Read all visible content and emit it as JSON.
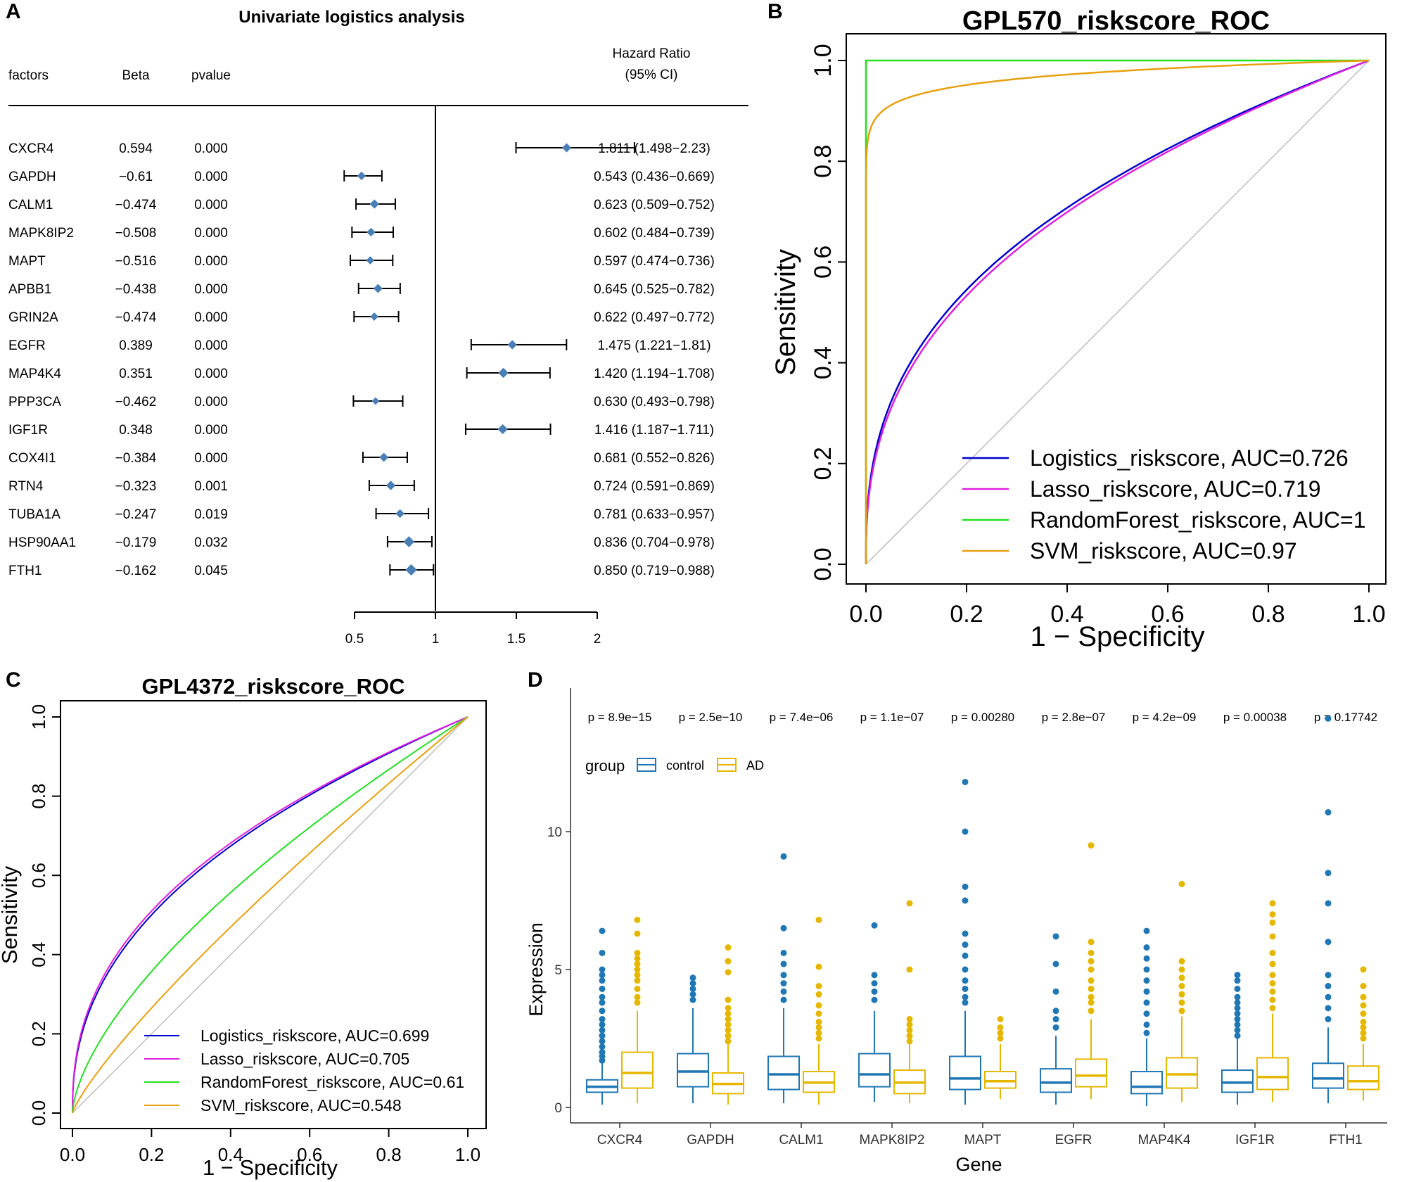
{
  "panel_labels": [
    "A",
    "B",
    "C",
    "D"
  ],
  "chart_data": [
    {
      "type": "forest",
      "panel": "A",
      "title": "Univariate logistics analysis",
      "headers": {
        "factors": "factors",
        "beta": "Beta",
        "pvalue": "pvalue",
        "hr_line1": "Hazard Ratio",
        "hr_line2": "(95% CI)"
      },
      "rows": [
        {
          "factor": "CXCR4",
          "beta": "0.594",
          "pvalue": "0.000",
          "hr": 1.811,
          "lo": 1.498,
          "hi": 2.23,
          "hr_text": "1.811 (1.498−2.23)"
        },
        {
          "factor": "GAPDH",
          "beta": "−0.61",
          "pvalue": "0.000",
          "hr": 0.543,
          "lo": 0.436,
          "hi": 0.669,
          "hr_text": "0.543 (0.436−0.669)"
        },
        {
          "factor": "CALM1",
          "beta": "−0.474",
          "pvalue": "0.000",
          "hr": 0.623,
          "lo": 0.509,
          "hi": 0.752,
          "hr_text": "0.623 (0.509−0.752)"
        },
        {
          "factor": "MAPK8IP2",
          "beta": "−0.508",
          "pvalue": "0.000",
          "hr": 0.602,
          "lo": 0.484,
          "hi": 0.739,
          "hr_text": "0.602 (0.484−0.739)"
        },
        {
          "factor": "MAPT",
          "beta": "−0.516",
          "pvalue": "0.000",
          "hr": 0.597,
          "lo": 0.474,
          "hi": 0.736,
          "hr_text": "0.597 (0.474−0.736)"
        },
        {
          "factor": "APBB1",
          "beta": "−0.438",
          "pvalue": "0.000",
          "hr": 0.645,
          "lo": 0.525,
          "hi": 0.782,
          "hr_text": "0.645 (0.525−0.782)"
        },
        {
          "factor": "GRIN2A",
          "beta": "−0.474",
          "pvalue": "0.000",
          "hr": 0.622,
          "lo": 0.497,
          "hi": 0.772,
          "hr_text": "0.622 (0.497−0.772)"
        },
        {
          "factor": "EGFR",
          "beta": "0.389",
          "pvalue": "0.000",
          "hr": 1.475,
          "lo": 1.221,
          "hi": 1.81,
          "hr_text": "1.475 (1.221−1.81)"
        },
        {
          "factor": "MAP4K4",
          "beta": "0.351",
          "pvalue": "0.000",
          "hr": 1.42,
          "lo": 1.194,
          "hi": 1.708,
          "hr_text": "1.420 (1.194−1.708)"
        },
        {
          "factor": "PPP3CA",
          "beta": "−0.462",
          "pvalue": "0.000",
          "hr": 0.63,
          "lo": 0.493,
          "hi": 0.798,
          "hr_text": "0.630 (0.493−0.798)"
        },
        {
          "factor": "IGF1R",
          "beta": "0.348",
          "pvalue": "0.000",
          "hr": 1.416,
          "lo": 1.187,
          "hi": 1.711,
          "hr_text": "1.416 (1.187−1.711)"
        },
        {
          "factor": "COX4I1",
          "beta": "−0.384",
          "pvalue": "0.000",
          "hr": 0.681,
          "lo": 0.552,
          "hi": 0.826,
          "hr_text": "0.681 (0.552−0.826)"
        },
        {
          "factor": "RTN4",
          "beta": "−0.323",
          "pvalue": "0.001",
          "hr": 0.724,
          "lo": 0.591,
          "hi": 0.869,
          "hr_text": "0.724 (0.591−0.869)"
        },
        {
          "factor": "TUBA1A",
          "beta": "−0.247",
          "pvalue": "0.019",
          "hr": 0.781,
          "lo": 0.633,
          "hi": 0.957,
          "hr_text": "0.781 (0.633−0.957)"
        },
        {
          "factor": "HSP90AA1",
          "beta": "−0.179",
          "pvalue": "0.032",
          "hr": 0.836,
          "lo": 0.704,
          "hi": 0.978,
          "hr_text": "0.836 (0.704−0.978)"
        },
        {
          "factor": "FTH1",
          "beta": "−0.162",
          "pvalue": "0.045",
          "hr": 0.85,
          "lo": 0.719,
          "hi": 0.988,
          "hr_text": "0.850 (0.719−0.988)"
        }
      ],
      "xticks": [
        0.5,
        1,
        1.5,
        2
      ],
      "xtick_labels": [
        "0.5",
        "1",
        "1.5",
        "2"
      ],
      "xlim": [
        0.5,
        2
      ],
      "marker_color": "#4a7fb5"
    },
    {
      "type": "line",
      "panel": "B",
      "title": "GPL570_riskscore_ROC",
      "xlabel": "1 − Specificity",
      "ylabel": "Sensitivity",
      "xlim": [
        0,
        1
      ],
      "ylim": [
        0,
        1
      ],
      "ticks": [
        0,
        0.2,
        0.4,
        0.6,
        0.8,
        1
      ],
      "tick_labels": [
        "0.0",
        "0.2",
        "0.4",
        "0.6",
        "0.8",
        "1.0"
      ],
      "diagonal_color": "#bebebe",
      "legend_position": "bottom-right",
      "series": [
        {
          "name": "Logistics_riskscore, AUC=0.726",
          "auc": 0.726,
          "color": "#0000cd"
        },
        {
          "name": "Lasso_riskscore, AUC=0.719",
          "auc": 0.719,
          "color": "#e020e0"
        },
        {
          "name": "RandomForest_riskscore, AUC=1",
          "auc": 1,
          "color": "#22e022"
        },
        {
          "name": "SVM_riskscore, AUC=0.97",
          "auc": 0.97,
          "color": "#e8a010"
        }
      ]
    },
    {
      "type": "line",
      "panel": "C",
      "title": "GPL4372_riskscore_ROC",
      "xlabel": "1 − Specificity",
      "ylabel": "Sensitivity",
      "xlim": [
        0,
        1
      ],
      "ylim": [
        0,
        1
      ],
      "ticks": [
        0,
        0.2,
        0.4,
        0.6,
        0.8,
        1
      ],
      "tick_labels": [
        "0.0",
        "0.2",
        "0.4",
        "0.6",
        "0.8",
        "1.0"
      ],
      "diagonal_color": "#bebebe",
      "legend_position": "bottom-right",
      "series": [
        {
          "name": "Logistics_riskscore, AUC=0.699",
          "auc": 0.699,
          "color": "#0000cd"
        },
        {
          "name": "Lasso_riskscore, AUC=0.705",
          "auc": 0.705,
          "color": "#e020e0"
        },
        {
          "name": "RandomForest_riskscore, AUC=0.61",
          "auc": 0.61,
          "color": "#22e022"
        },
        {
          "name": "SVM_riskscore, AUC=0.548",
          "auc": 0.548,
          "color": "#e8a010"
        }
      ]
    },
    {
      "type": "box",
      "panel": "D",
      "xlabel": "Gene",
      "ylabel": "Expression",
      "ylim": [
        -0.5,
        14.3
      ],
      "yticks": [
        0,
        5,
        10
      ],
      "ytick_labels": [
        "0",
        "5",
        "10"
      ],
      "legend_title": "group",
      "groups": [
        {
          "name": "control",
          "color": "#1f77b4"
        },
        {
          "name": "AD",
          "color": "#e6b700"
        }
      ],
      "genes": [
        {
          "gene": "CXCR4",
          "pvalue": "p = 8.9e−15",
          "control": {
            "q1": 0.55,
            "med": 0.75,
            "q3": 1.0,
            "wlo": 0.1,
            "whi": 1.6,
            "outliers": [
              1.7,
              1.85,
              2.0,
              2.2,
              2.4,
              2.6,
              2.8,
              3.0,
              3.2,
              3.5,
              3.8,
              4.0,
              4.3,
              4.6,
              4.8,
              5.0,
              5.6,
              6.4
            ]
          },
          "AD": {
            "q1": 0.7,
            "med": 1.25,
            "q3": 2.0,
            "wlo": 0.15,
            "whi": 3.5,
            "outliers": [
              3.8,
              4.0,
              4.3,
              4.6,
              4.8,
              5.0,
              5.2,
              5.4,
              5.6,
              6.3,
              6.8
            ]
          }
        },
        {
          "gene": "GAPDH",
          "pvalue": "p = 2.5e−10",
          "control": {
            "q1": 0.75,
            "med": 1.3,
            "q3": 1.95,
            "wlo": 0.15,
            "whi": 3.6,
            "outliers": [
              3.9,
              4.1,
              4.3,
              4.5,
              4.7
            ]
          },
          "AD": {
            "q1": 0.5,
            "med": 0.85,
            "q3": 1.25,
            "wlo": 0.1,
            "whi": 2.3,
            "outliers": [
              2.4,
              2.6,
              2.8,
              3.0,
              3.2,
              3.4,
              3.6,
              3.9,
              4.9,
              5.3,
              5.8
            ]
          }
        },
        {
          "gene": "CALM1",
          "pvalue": "p = 7.4e−06",
          "control": {
            "q1": 0.65,
            "med": 1.2,
            "q3": 1.85,
            "wlo": 0.15,
            "whi": 3.6,
            "outliers": [
              3.9,
              4.2,
              4.5,
              4.8,
              5.2,
              5.6,
              6.5,
              9.1
            ]
          },
          "AD": {
            "q1": 0.55,
            "med": 0.9,
            "q3": 1.3,
            "wlo": 0.1,
            "whi": 2.3,
            "outliers": [
              2.5,
              2.7,
              2.9,
              3.1,
              3.4,
              3.7,
              4.1,
              4.4,
              5.1,
              6.8
            ]
          }
        },
        {
          "gene": "MAPK8IP2",
          "pvalue": "p = 1.1e−07",
          "control": {
            "q1": 0.75,
            "med": 1.2,
            "q3": 1.95,
            "wlo": 0.2,
            "whi": 3.5,
            "outliers": [
              3.9,
              4.2,
              4.5,
              4.8,
              6.6
            ]
          },
          "AD": {
            "q1": 0.5,
            "med": 0.9,
            "q3": 1.35,
            "wlo": 0.15,
            "whi": 2.3,
            "outliers": [
              2.4,
              2.6,
              2.8,
              3.0,
              3.2,
              5.0,
              7.4
            ]
          }
        },
        {
          "gene": "MAPT",
          "pvalue": "p = 0.00280",
          "control": {
            "q1": 0.65,
            "med": 1.05,
            "q3": 1.85,
            "wlo": 0.1,
            "whi": 3.5,
            "outliers": [
              3.8,
              4.0,
              4.3,
              4.6,
              5.0,
              5.5,
              5.9,
              6.3,
              7.5,
              8.0,
              10.0,
              11.8
            ]
          },
          "AD": {
            "q1": 0.7,
            "med": 0.95,
            "q3": 1.3,
            "wlo": 0.3,
            "whi": 2.3,
            "outliers": [
              2.5,
              2.7,
              2.9,
              3.2
            ]
          }
        },
        {
          "gene": "EGFR",
          "pvalue": "p = 2.8e−07",
          "control": {
            "q1": 0.55,
            "med": 0.9,
            "q3": 1.4,
            "wlo": 0.1,
            "whi": 2.6,
            "outliers": [
              2.9,
              3.2,
              3.5,
              4.2,
              5.2,
              6.2
            ]
          },
          "AD": {
            "q1": 0.75,
            "med": 1.15,
            "q3": 1.75,
            "wlo": 0.3,
            "whi": 3.2,
            "outliers": [
              3.5,
              3.8,
              4.0,
              4.3,
              4.6,
              5.0,
              5.3,
              5.6,
              6.0,
              9.5
            ]
          }
        },
        {
          "gene": "MAP4K4",
          "pvalue": "p = 4.2e−09",
          "control": {
            "q1": 0.5,
            "med": 0.75,
            "q3": 1.3,
            "wlo": 0.05,
            "whi": 2.5,
            "outliers": [
              2.7,
              3.0,
              3.4,
              3.8,
              4.2,
              4.6,
              5.0,
              5.4,
              5.8,
              6.4
            ]
          },
          "AD": {
            "q1": 0.7,
            "med": 1.2,
            "q3": 1.8,
            "wlo": 0.2,
            "whi": 3.3,
            "outliers": [
              3.5,
              3.8,
              4.1,
              4.4,
              4.7,
              5.0,
              5.3,
              8.1
            ]
          }
        },
        {
          "gene": "IGF1R",
          "pvalue": "p = 0.00038",
          "control": {
            "q1": 0.55,
            "med": 0.9,
            "q3": 1.35,
            "wlo": 0.1,
            "whi": 2.5,
            "outliers": [
              2.6,
              2.8,
              3.0,
              3.2,
              3.4,
              3.6,
              3.8,
              4.0,
              4.3,
              4.6,
              4.8
            ]
          },
          "AD": {
            "q1": 0.65,
            "med": 1.1,
            "q3": 1.8,
            "wlo": 0.2,
            "whi": 3.4,
            "outliers": [
              3.6,
              3.9,
              4.2,
              4.5,
              4.8,
              5.2,
              5.6,
              6.2,
              6.7,
              7.0,
              7.4
            ]
          }
        },
        {
          "gene": "FTH1",
          "pvalue": "p = 0.17742",
          "control": {
            "q1": 0.7,
            "med": 1.05,
            "q3": 1.6,
            "wlo": 0.15,
            "whi": 2.9,
            "outliers": [
              3.2,
              3.6,
              4.0,
              4.4,
              4.8,
              6.0,
              7.4,
              8.5,
              10.7,
              14.1
            ]
          },
          "AD": {
            "q1": 0.65,
            "med": 0.95,
            "q3": 1.5,
            "wlo": 0.25,
            "whi": 2.3,
            "outliers": [
              2.5,
              2.7,
              2.9,
              3.1,
              3.4,
              3.7,
              4.0,
              4.4,
              5.0
            ]
          }
        }
      ]
    }
  ]
}
